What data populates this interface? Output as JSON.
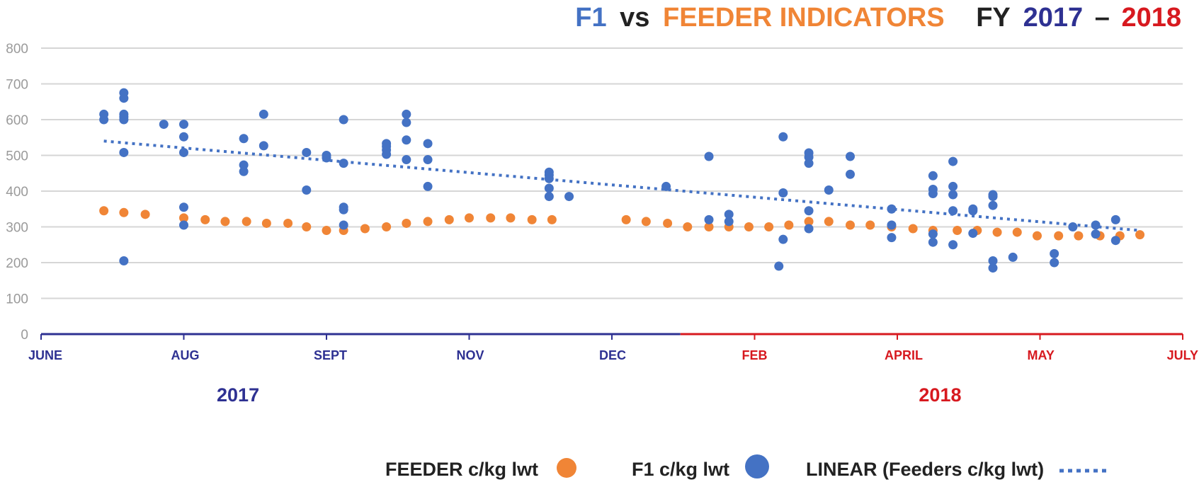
{
  "colors": {
    "feeder": "#f08536",
    "f1": "#4472c4",
    "fy2017": "#2e3192",
    "fy2018": "#d7191f",
    "grid": "#d6d6d6",
    "tick": "#9a9a9a",
    "dark": "#222222"
  },
  "title": {
    "part_f1": "F1",
    "part_vs": "vs",
    "part_feeder": "FEEDER INDICATORS",
    "part_fy": "FY",
    "part_2017": "2017",
    "part_dash": "–",
    "part_2018": "2018"
  },
  "chart_data": {
    "type": "scatter",
    "y_axis": {
      "min": 0,
      "max": 800,
      "ticks": [
        0,
        100,
        200,
        300,
        400,
        500,
        600,
        700,
        800
      ]
    },
    "x_axis": {
      "min": 0,
      "max": 8,
      "ticks": [
        {
          "label": "JUNE",
          "x": 0,
          "year": "2017"
        },
        {
          "label": "AUG",
          "x": 1,
          "year": "2017"
        },
        {
          "label": "SEPT",
          "x": 2,
          "year": "2017"
        },
        {
          "label": "NOV",
          "x": 3,
          "year": "2017"
        },
        {
          "label": "DEC",
          "x": 4,
          "year": "2017"
        },
        {
          "label": "FEB",
          "x": 5,
          "year": "2018"
        },
        {
          "label": "APRIL",
          "x": 6,
          "year": "2018"
        },
        {
          "label": "MAY",
          "x": 7,
          "year": "2018"
        },
        {
          "label": "JULY",
          "x": 8,
          "year": "2018"
        }
      ],
      "year_split": 4.48,
      "year_labels": [
        {
          "label": "2017",
          "x": 1.38
        },
        {
          "label": "2018",
          "x": 6.3
        }
      ]
    },
    "grid": true,
    "legend_position": "bottom",
    "series": [
      {
        "name": "FEEDER c/kg lwt",
        "points": [
          [
            0.44,
            345
          ],
          [
            0.58,
            340
          ],
          [
            0.73,
            335
          ],
          [
            1.0,
            325
          ],
          [
            1.15,
            320
          ],
          [
            1.29,
            315
          ],
          [
            1.44,
            315
          ],
          [
            1.58,
            310
          ],
          [
            1.73,
            310
          ],
          [
            1.86,
            300
          ],
          [
            2.0,
            290
          ],
          [
            2.12,
            290
          ],
          [
            2.27,
            295
          ],
          [
            2.42,
            300
          ],
          [
            2.56,
            310
          ],
          [
            2.71,
            315
          ],
          [
            2.86,
            320
          ],
          [
            3.0,
            325
          ],
          [
            3.15,
            325
          ],
          [
            3.29,
            325
          ],
          [
            3.44,
            320
          ],
          [
            3.58,
            320
          ],
          [
            4.1,
            320
          ],
          [
            4.24,
            315
          ],
          [
            4.39,
            310
          ],
          [
            4.53,
            300
          ],
          [
            4.68,
            300
          ],
          [
            4.82,
            300
          ],
          [
            4.96,
            300
          ],
          [
            5.1,
            300
          ],
          [
            5.24,
            305
          ],
          [
            5.38,
            315
          ],
          [
            5.52,
            315
          ],
          [
            5.67,
            305
          ],
          [
            5.81,
            305
          ],
          [
            5.96,
            300
          ],
          [
            6.11,
            295
          ],
          [
            6.25,
            290
          ],
          [
            6.42,
            290
          ],
          [
            6.56,
            290
          ],
          [
            6.7,
            285
          ],
          [
            6.84,
            285
          ],
          [
            6.98,
            275
          ],
          [
            7.13,
            275
          ],
          [
            7.27,
            275
          ],
          [
            7.42,
            275
          ],
          [
            7.56,
            275
          ],
          [
            7.7,
            278
          ]
        ]
      },
      {
        "name": "F1 c/kg lwt",
        "points": [
          [
            0.44,
            615
          ],
          [
            0.44,
            600
          ],
          [
            0.58,
            675
          ],
          [
            0.58,
            660
          ],
          [
            0.58,
            615
          ],
          [
            0.58,
            608
          ],
          [
            0.58,
            600
          ],
          [
            0.58,
            508
          ],
          [
            0.58,
            205
          ],
          [
            0.86,
            587
          ],
          [
            1.0,
            587
          ],
          [
            1.0,
            552
          ],
          [
            1.0,
            508
          ],
          [
            1.0,
            355
          ],
          [
            1.0,
            305
          ],
          [
            1.42,
            547
          ],
          [
            1.42,
            473
          ],
          [
            1.42,
            455
          ],
          [
            1.56,
            615
          ],
          [
            1.56,
            527
          ],
          [
            1.86,
            508
          ],
          [
            1.86,
            403
          ],
          [
            2.0,
            500
          ],
          [
            2.0,
            493
          ],
          [
            2.12,
            600
          ],
          [
            2.12,
            478
          ],
          [
            2.12,
            355
          ],
          [
            2.12,
            348
          ],
          [
            2.12,
            305
          ],
          [
            2.42,
            533
          ],
          [
            2.42,
            525
          ],
          [
            2.42,
            515
          ],
          [
            2.42,
            503
          ],
          [
            2.56,
            615
          ],
          [
            2.56,
            592
          ],
          [
            2.56,
            543
          ],
          [
            2.56,
            488
          ],
          [
            2.71,
            533
          ],
          [
            2.71,
            488
          ],
          [
            2.71,
            413
          ],
          [
            3.56,
            453
          ],
          [
            3.56,
            445
          ],
          [
            3.56,
            435
          ],
          [
            3.56,
            408
          ],
          [
            3.56,
            385
          ],
          [
            3.7,
            385
          ],
          [
            4.38,
            413
          ],
          [
            4.68,
            497
          ],
          [
            4.68,
            320
          ],
          [
            4.82,
            335
          ],
          [
            4.82,
            315
          ],
          [
            5.17,
            190
          ],
          [
            5.2,
            552
          ],
          [
            5.2,
            395
          ],
          [
            5.2,
            265
          ],
          [
            5.38,
            507
          ],
          [
            5.38,
            495
          ],
          [
            5.38,
            478
          ],
          [
            5.38,
            345
          ],
          [
            5.38,
            295
          ],
          [
            5.52,
            403
          ],
          [
            5.67,
            497
          ],
          [
            5.67,
            447
          ],
          [
            5.96,
            350
          ],
          [
            5.96,
            305
          ],
          [
            5.96,
            270
          ],
          [
            6.25,
            443
          ],
          [
            6.25,
            405
          ],
          [
            6.25,
            393
          ],
          [
            6.25,
            280
          ],
          [
            6.25,
            257
          ],
          [
            6.39,
            483
          ],
          [
            6.39,
            413
          ],
          [
            6.39,
            390
          ],
          [
            6.39,
            345
          ],
          [
            6.39,
            250
          ],
          [
            6.53,
            350
          ],
          [
            6.53,
            345
          ],
          [
            6.53,
            282
          ],
          [
            6.67,
            390
          ],
          [
            6.67,
            385
          ],
          [
            6.67,
            360
          ],
          [
            6.67,
            205
          ],
          [
            6.67,
            185
          ],
          [
            6.81,
            215
          ],
          [
            7.1,
            225
          ],
          [
            7.1,
            200
          ],
          [
            7.23,
            300
          ],
          [
            7.39,
            305
          ],
          [
            7.39,
            280
          ],
          [
            7.53,
            320
          ],
          [
            7.53,
            262
          ]
        ]
      },
      {
        "name": "LINEAR (Feeders c/kg lwt)",
        "line": [
          [
            0.44,
            540
          ],
          [
            7.7,
            290
          ]
        ]
      }
    ]
  }
}
